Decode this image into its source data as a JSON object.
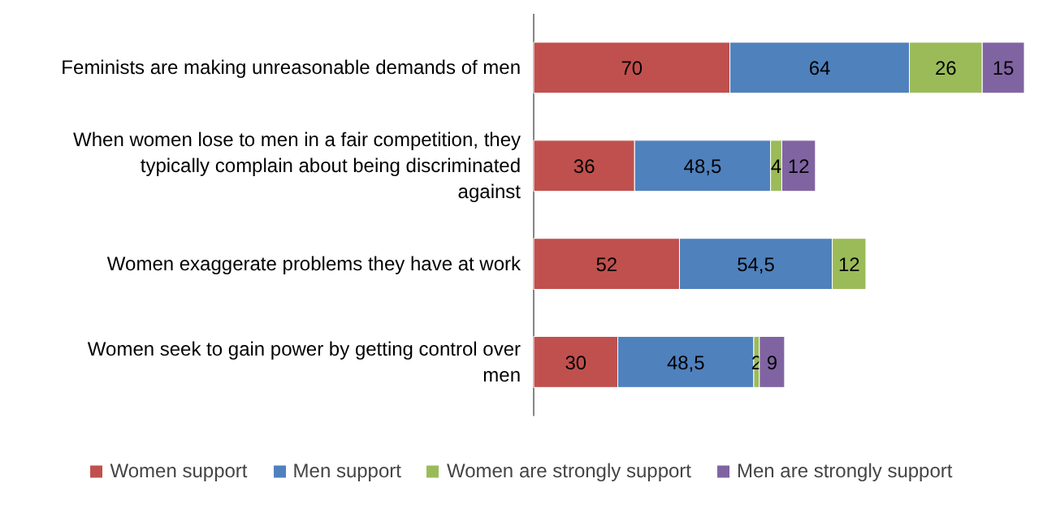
{
  "chart_data": {
    "type": "bar",
    "orientation": "horizontal",
    "stacked": true,
    "legend": "bottom",
    "categories": [
      "Feminists are making unreasonable demands of men",
      "When women lose to men in a fair competition, they typically complain about being discriminated against",
      "Women exaggerate problems they have at work",
      "Women seek to gain power by getting control over men"
    ],
    "series": [
      {
        "name": "Women support",
        "color": "#c0504d",
        "values": [
          70,
          36,
          52,
          30
        ],
        "value_labels": [
          "70",
          "36",
          "52",
          "30"
        ]
      },
      {
        "name": "Men support",
        "color": "#4f81bd",
        "values": [
          64,
          48.5,
          54.5,
          48.5
        ],
        "value_labels": [
          "64",
          "48,5",
          "54,5",
          "48,5"
        ]
      },
      {
        "name": "Women are strongly support",
        "color": "#9bbb59",
        "values": [
          26,
          4,
          12,
          2
        ],
        "value_labels": [
          "26",
          "4",
          "12",
          "2"
        ]
      },
      {
        "name": "Men are strongly support",
        "color": "#8064a2",
        "values": [
          15,
          12,
          null,
          9
        ],
        "value_labels": [
          "15",
          "12",
          null,
          "9"
        ]
      }
    ]
  }
}
